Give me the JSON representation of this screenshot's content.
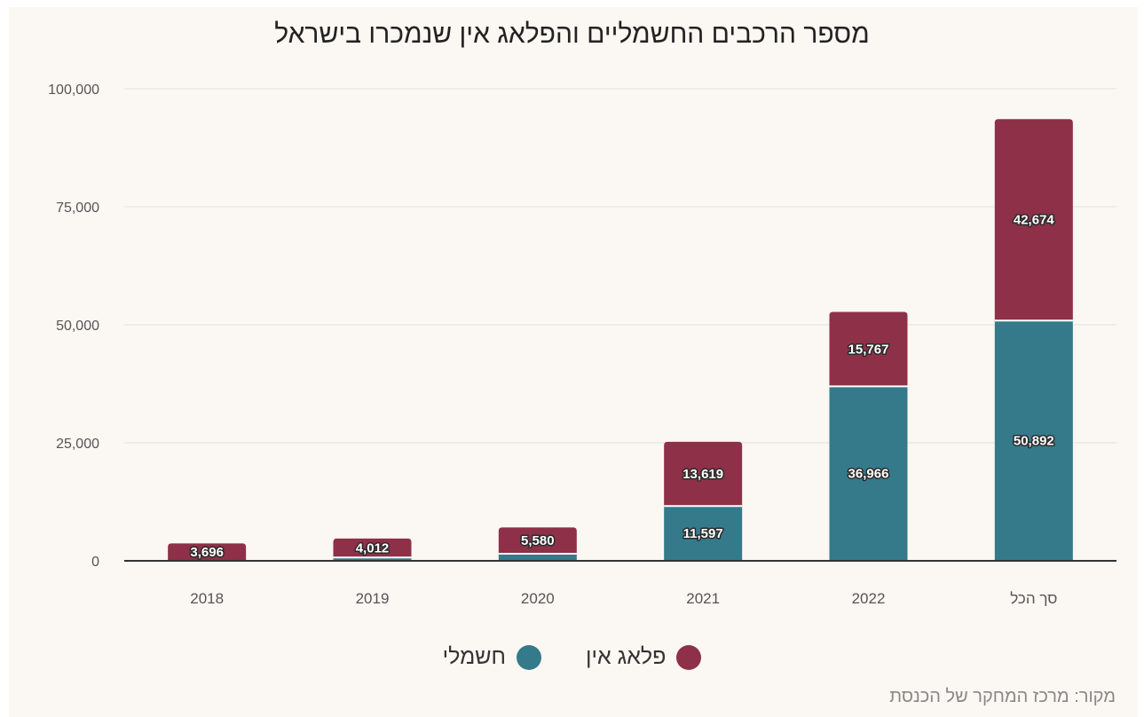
{
  "title": "מספר הרכבים החשמליים והפלאג אין שנמכרו בישראל",
  "source": "מקור: מרכז המחקר של הכנסת",
  "colors": {
    "electric": "#357a8a",
    "plugin": "#8d3048",
    "grid": "#e6e1dc",
    "axis": "#333333",
    "background": "#fbf7f3"
  },
  "legend": [
    {
      "name": "פלאג אין",
      "color": "#8d3048"
    },
    {
      "name": "חשמלי",
      "color": "#357a8a"
    }
  ],
  "chart_data": {
    "type": "bar",
    "stacked": true,
    "categories": [
      "2018",
      "2019",
      "2020",
      "2021",
      "2022",
      "סך הכל"
    ],
    "series": [
      {
        "name": "חשמלי",
        "values": [
          0,
          700,
          1500,
          11597,
          36966,
          50892
        ],
        "labels": [
          "",
          "",
          "",
          "11,597",
          "36,966",
          "50,892"
        ]
      },
      {
        "name": "פלאג אין",
        "values": [
          3696,
          4012,
          5580,
          13619,
          15767,
          42674
        ],
        "labels": [
          "3,696",
          "4,012",
          "5,580",
          "13,619",
          "15,767",
          "42,674"
        ]
      }
    ],
    "yticks": [
      "0",
      "25,000",
      "50,000",
      "75,000",
      "100,000"
    ],
    "ylim": [
      0,
      100000
    ],
    "grid": true,
    "legend_position": "bottom"
  }
}
